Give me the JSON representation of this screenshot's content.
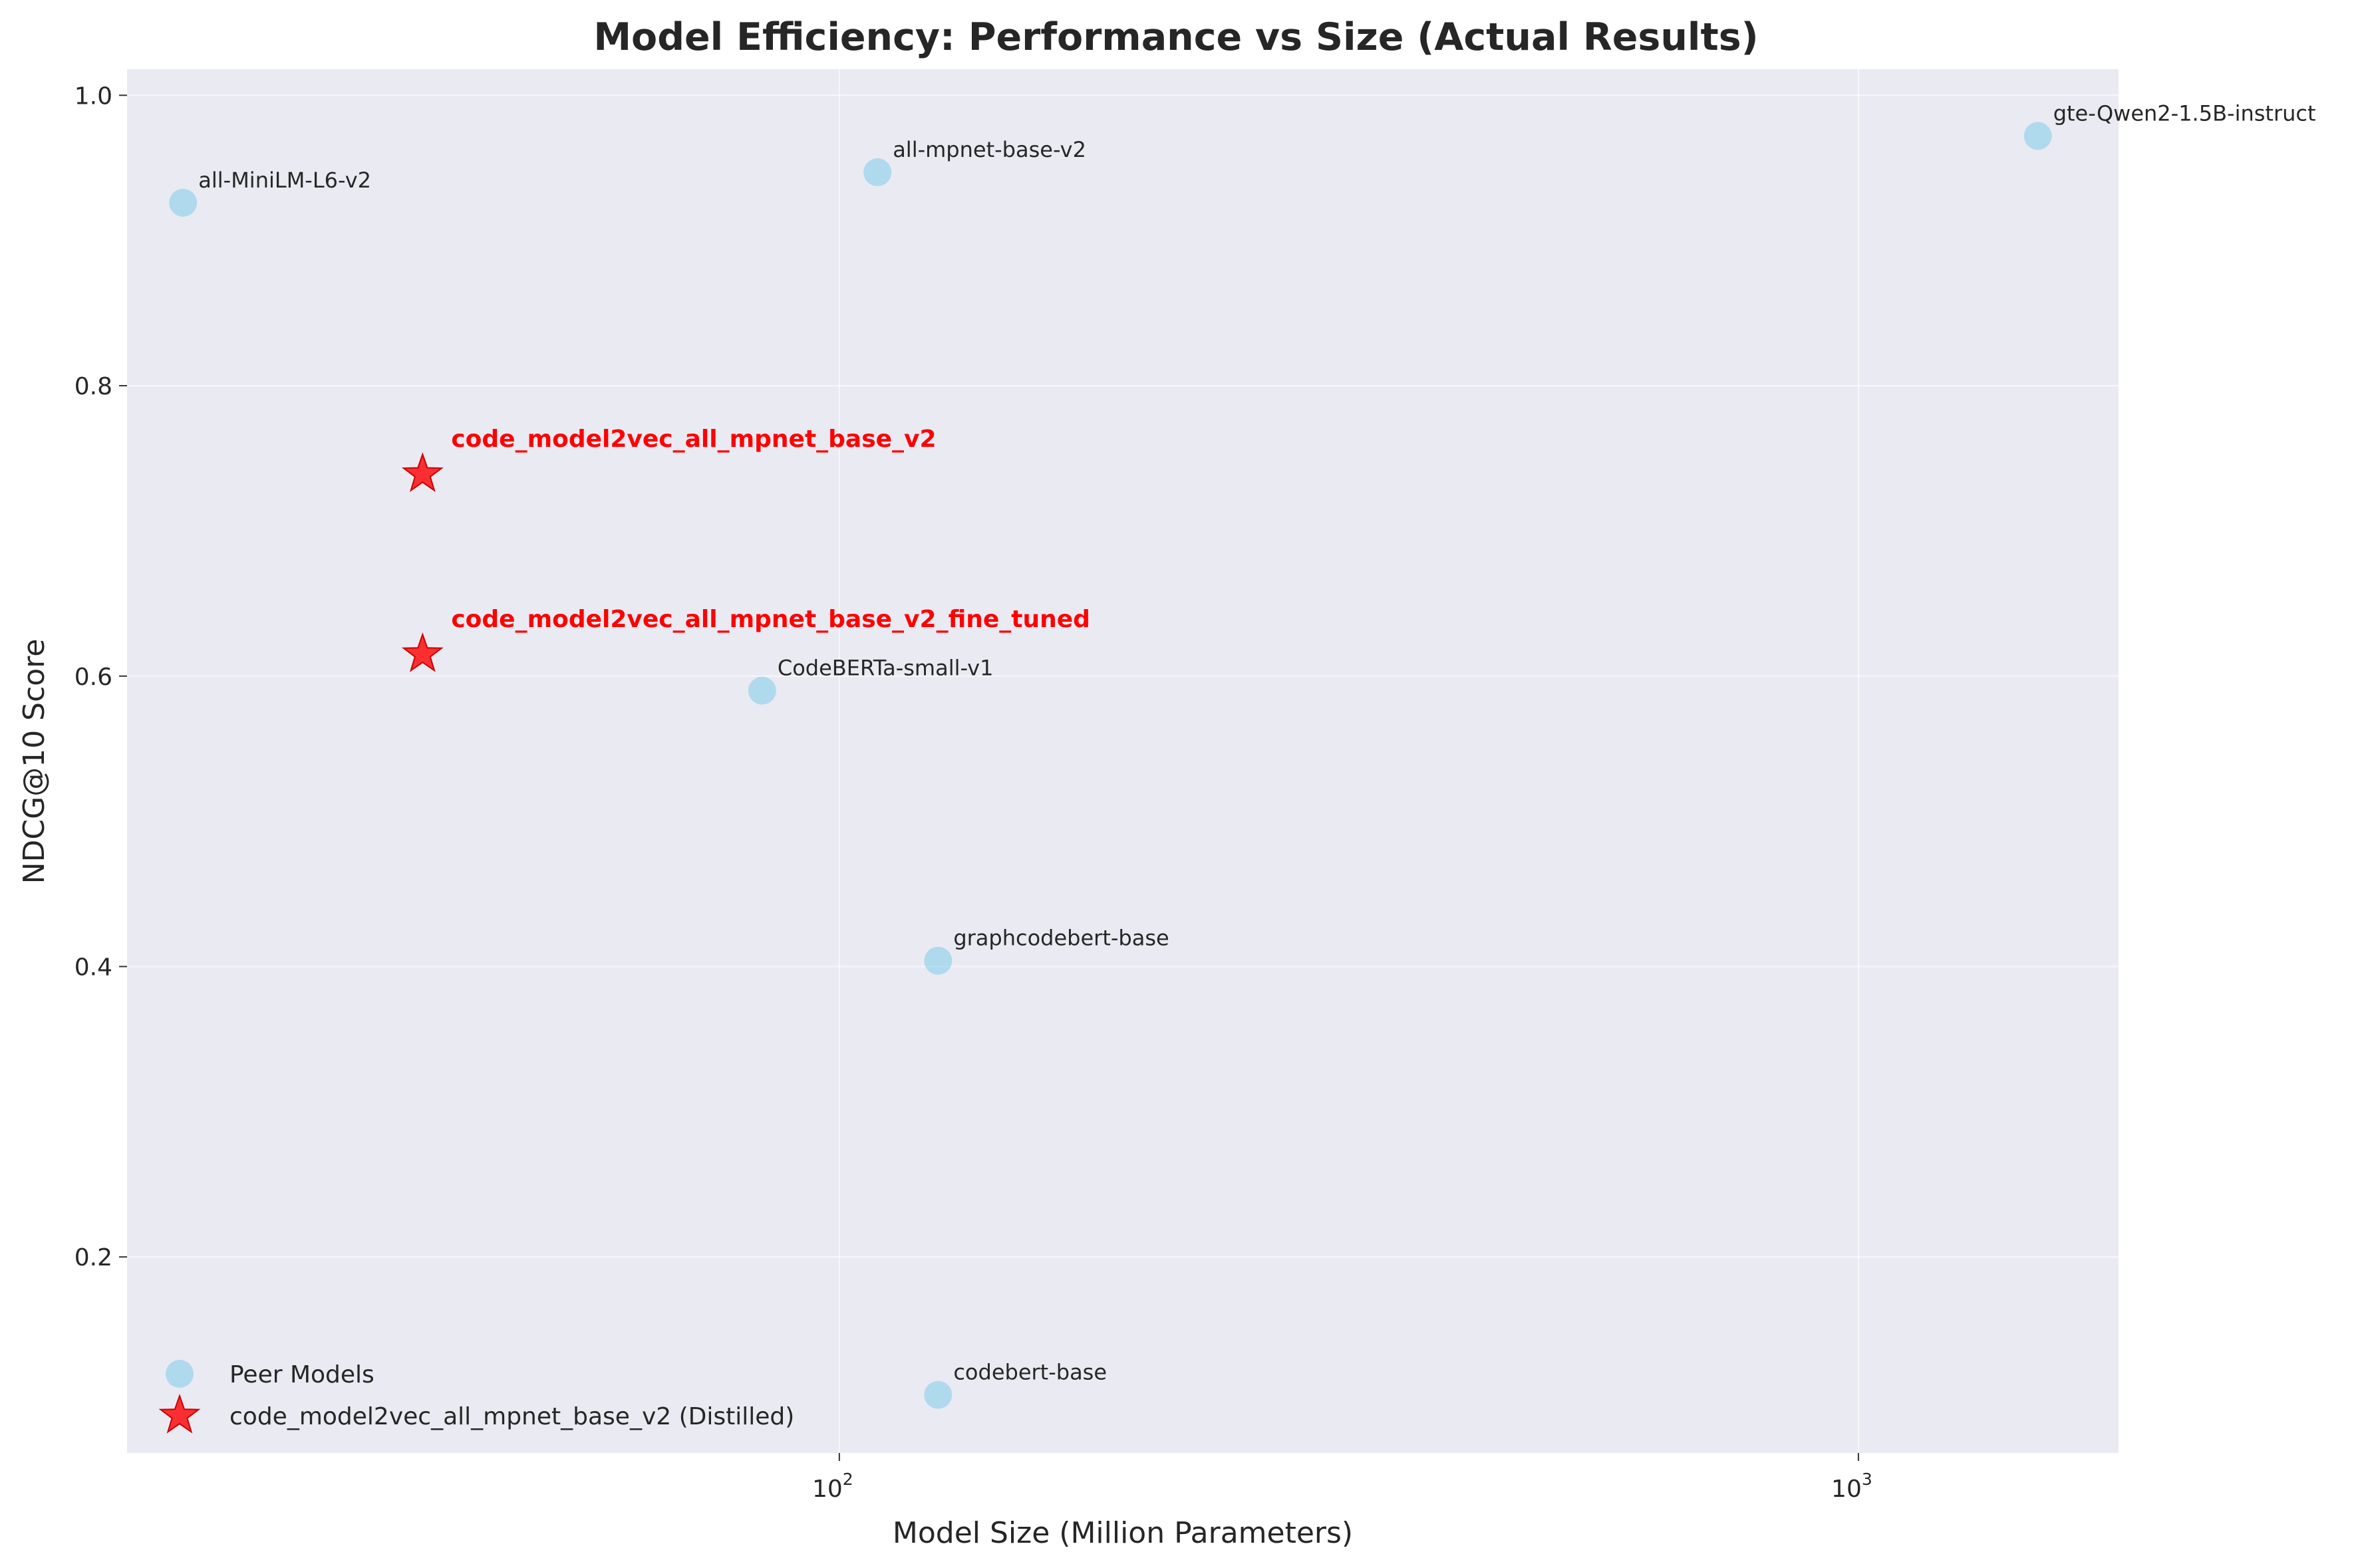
{
  "chart_data": {
    "type": "scatter",
    "title": "Model Efficiency: Performance vs Size (Actual Results)",
    "xlabel": "Model Size (Million Parameters)",
    "ylabel": "NDCG@10 Score",
    "x_scale": "log",
    "xlim": [
      20,
      1800
    ],
    "ylim": [
      0.065,
      1.018
    ],
    "x_ticks": [
      {
        "value": 100,
        "label": "10",
        "exp": "2"
      },
      {
        "value": 1000,
        "label": "10",
        "exp": "3"
      }
    ],
    "y_ticks": [
      {
        "value": 0.2,
        "label": "0.2"
      },
      {
        "value": 0.4,
        "label": "0.4"
      },
      {
        "value": 0.6,
        "label": "0.6"
      },
      {
        "value": 0.8,
        "label": "0.8"
      },
      {
        "value": 1.0,
        "label": "1.0"
      }
    ],
    "grid": true,
    "legend_placement": "lower-left",
    "series": [
      {
        "name": "Peer Models",
        "marker": "circle",
        "color": "#87ceeb",
        "points": [
          {
            "label": "all-MiniLM-L6-v2",
            "x": 22.7,
            "y": 0.926
          },
          {
            "label": "all-mpnet-base-v2",
            "x": 109,
            "y": 0.947
          },
          {
            "label": "gte-Qwen2-1.5B-instruct",
            "x": 1500,
            "y": 0.972
          },
          {
            "label": "CodeBERTa-small-v1",
            "x": 84,
            "y": 0.59
          },
          {
            "label": "graphcodebert-base",
            "x": 125,
            "y": 0.404
          },
          {
            "label": "codebert-base",
            "x": 125,
            "y": 0.105
          }
        ]
      },
      {
        "name": "code_model2vec_all_mpnet_base_v2 (Distilled)",
        "marker": "star",
        "color": "#ff0000",
        "points": [
          {
            "label": "code_model2vec_all_mpnet_base_v2",
            "x": 39,
            "y": 0.739
          },
          {
            "label": "code_model2vec_all_mpnet_base_v2_fine_tuned",
            "x": 39,
            "y": 0.615
          }
        ]
      }
    ]
  }
}
